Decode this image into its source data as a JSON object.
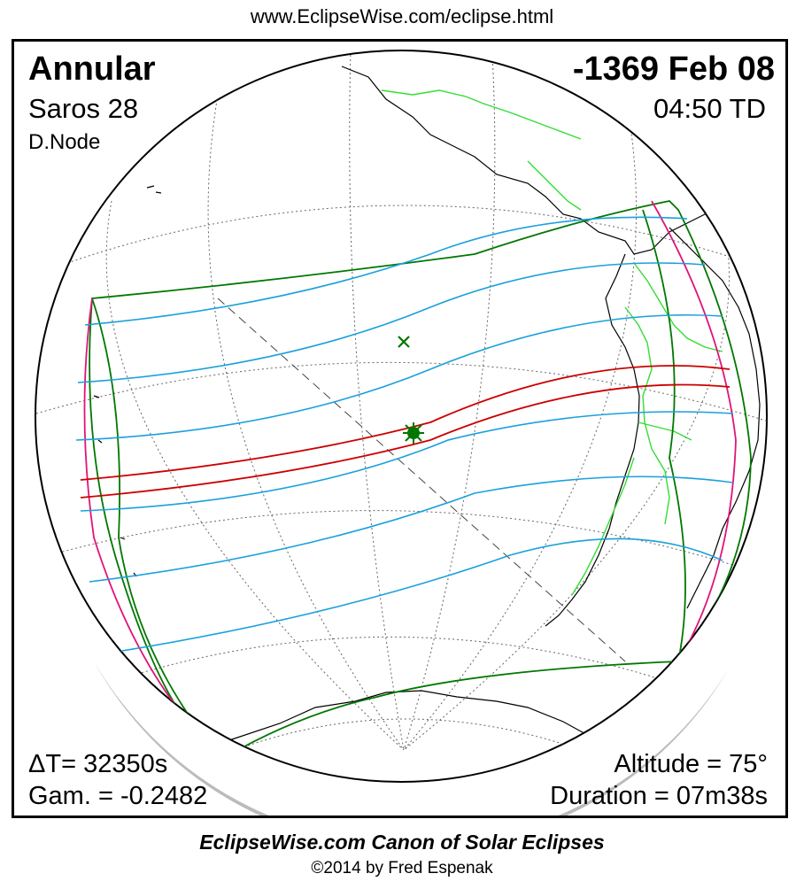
{
  "header": {
    "url": "www.EclipseWise.com/eclipse.html"
  },
  "eclipse": {
    "type": "Annular",
    "date": "-1369 Feb 08",
    "saros": "Saros  28",
    "time": "04:50 TD",
    "node": "D.Node",
    "delta_t": "ΔT=  32350s",
    "gamma": "Gam. = -0.2482",
    "altitude": "Altitude = 75°",
    "duration": "Duration = 07m38s"
  },
  "footer": {
    "canon": "EclipseWise.com Canon of Solar Eclipses",
    "copyright": "©2014 by Fred Espenak"
  },
  "colors": {
    "central_path": "#cc0000",
    "penumbral_lines": "#1aa0dc",
    "penumbral_boundary": "#007700",
    "rise_set_curve": "#e0147a",
    "borders": "#33dd33",
    "coastlines": "#000000",
    "shadow_rim": "#bbbbbb"
  },
  "markers": {
    "greatest_eclipse": "star-marker",
    "subsolar_point": "cross-marker"
  }
}
